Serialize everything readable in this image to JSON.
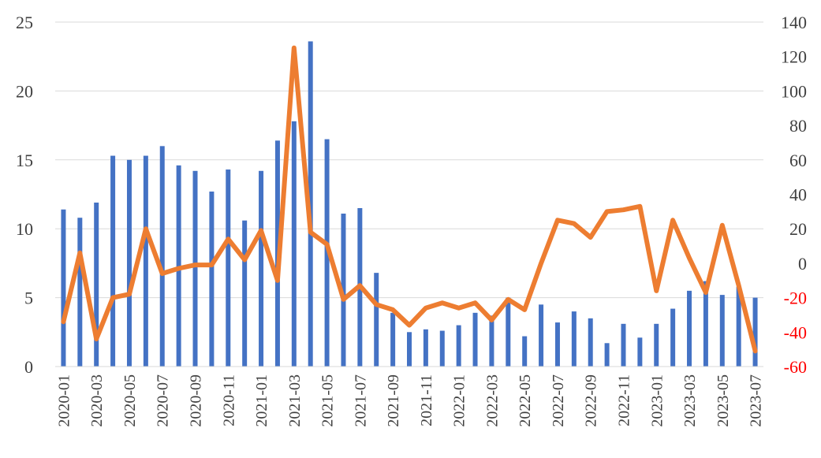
{
  "chart_data": {
    "type": "bar+line",
    "title": "",
    "xlabel": "",
    "ylabel_left": "",
    "ylabel_right": "",
    "grid": "horizontal",
    "legend": "none",
    "colors": {
      "bars": "#4472C4",
      "line": "#ED7D31",
      "negative_ticks": "#FF0000",
      "grid": "#D9D9D9",
      "text": "#404040"
    },
    "y_left": {
      "min": 0,
      "max": 25,
      "ticks": [
        "0",
        "5",
        "10",
        "15",
        "20",
        "25"
      ]
    },
    "y_right": {
      "min": -60,
      "max": 140,
      "ticks": [
        "-60",
        "-40",
        "-20",
        "0",
        "20",
        "40",
        "60",
        "80",
        "100",
        "120",
        "140"
      ]
    },
    "x": [
      "2020-01",
      "2020-02",
      "2020-03",
      "2020-04",
      "2020-05",
      "2020-06",
      "2020-07",
      "2020-08",
      "2020-09",
      "2020-10",
      "2020-11",
      "2020-12",
      "2021-01",
      "2021-02",
      "2021-03",
      "2021-04",
      "2021-05",
      "2021-06",
      "2021-07",
      "2021-08",
      "2021-09",
      "2021-10",
      "2021-11",
      "2021-12",
      "2022-01",
      "2022-02",
      "2022-03",
      "2022-04",
      "2022-05",
      "2022-06",
      "2022-07",
      "2022-08",
      "2022-09",
      "2022-10",
      "2022-11",
      "2022-12",
      "2023-01",
      "2023-02",
      "2023-03",
      "2023-04",
      "2023-05",
      "2023-06",
      "2023-07"
    ],
    "x_tick_labels": [
      "2020-01",
      "2020-03",
      "2020-05",
      "2020-07",
      "2020-09",
      "2020-11",
      "2021-01",
      "2021-03",
      "2021-05",
      "2021-07",
      "2021-09",
      "2021-11",
      "2022-01",
      "2022-03",
      "2022-05",
      "2022-07",
      "2022-09",
      "2022-11",
      "2023-01",
      "2023-03",
      "2023-05",
      "2023-07"
    ],
    "series": [
      {
        "type": "bar",
        "axis": "left",
        "values": [
          11.4,
          10.8,
          11.9,
          15.3,
          15.0,
          15.3,
          16.0,
          14.6,
          14.2,
          12.7,
          14.3,
          10.6,
          14.2,
          16.4,
          17.8,
          23.6,
          16.5,
          11.1,
          11.5,
          6.8,
          3.9,
          2.5,
          2.7,
          2.6,
          3.0,
          3.9,
          3.7,
          5.0,
          2.2,
          4.5,
          3.2,
          4.0,
          3.5,
          1.7,
          3.1,
          2.1,
          3.1,
          4.2,
          5.5,
          6.2,
          5.2,
          5.8,
          5.0
        ]
      },
      {
        "type": "line",
        "axis": "right",
        "values": [
          -34,
          6,
          -44,
          -20,
          -18,
          20,
          -6,
          -3,
          -1,
          -1,
          14,
          2,
          19,
          -10,
          125,
          18,
          11,
          -21,
          -13,
          -24,
          -27,
          -36,
          -26,
          -23,
          -26,
          -23,
          -33,
          -21,
          -27,
          0,
          25,
          23,
          15,
          30,
          31,
          33,
          -16,
          25,
          3,
          -17,
          22,
          -13,
          -51
        ]
      }
    ]
  }
}
